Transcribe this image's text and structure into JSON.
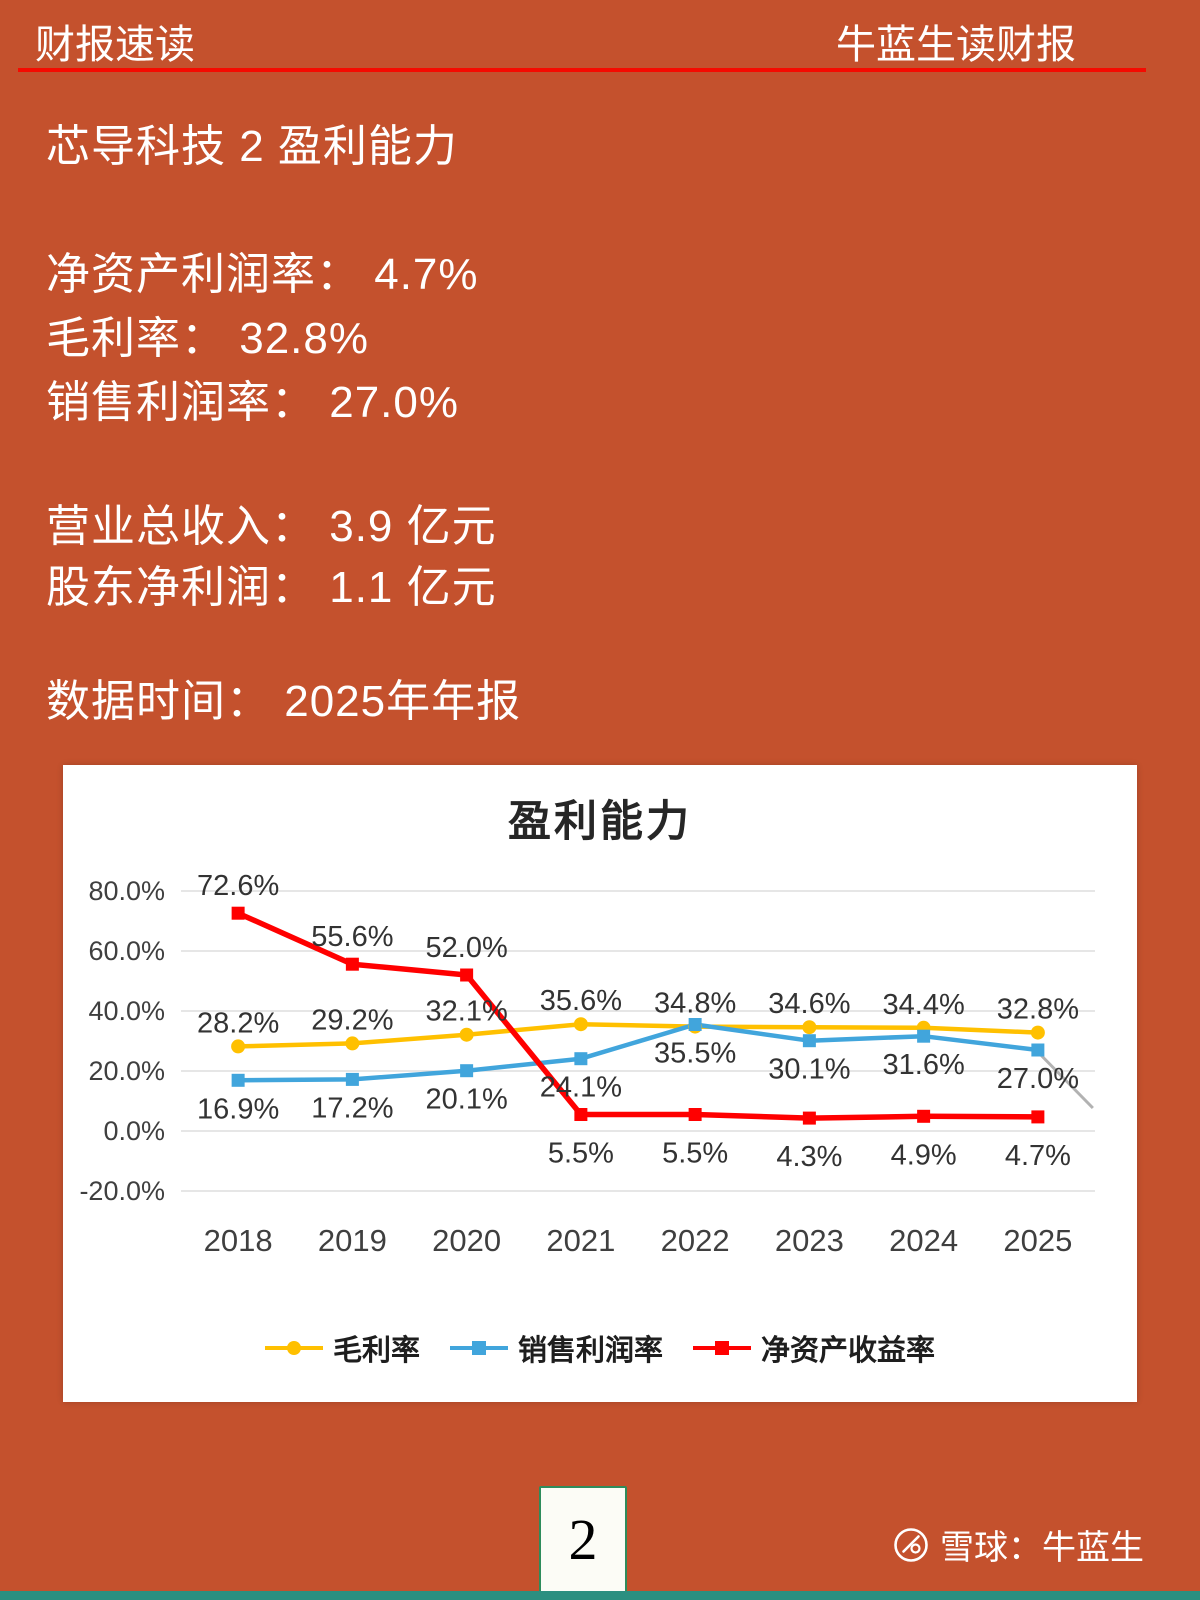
{
  "colors": {
    "background": "#C4512D",
    "header_rule": "#F50A00",
    "footer_strip": "#2B8F80",
    "page_box_border": "#2E8C5C",
    "series_gross_margin": "#FFC000",
    "series_net_sales_margin": "#41A5DC",
    "series_roe": "#FF0000"
  },
  "header": {
    "left_title": "财报速读",
    "right_title": "牛蓝生读财报"
  },
  "title": "芯导科技 2 盈利能力",
  "stats": [
    "净资产利润率： 4.7%",
    "毛利率： 32.8%",
    "销售利润率： 27.0%"
  ],
  "revenue": [
    "营业总收入： 3.9 亿元",
    "股东净利润： 1.1 亿元"
  ],
  "data_time": "数据时间： 2025年年报",
  "footer": {
    "page_number": "2",
    "watermark": "雪球：牛蓝生"
  },
  "chart_data": {
    "type": "line",
    "title": "盈利能力",
    "categories": [
      "2018",
      "2019",
      "2020",
      "2021",
      "2022",
      "2023",
      "2024",
      "2025"
    ],
    "series": [
      {
        "name": "毛利率",
        "color": "#FFC000",
        "marker": "circle",
        "values": [
          28.2,
          29.2,
          32.1,
          35.6,
          34.8,
          34.6,
          34.4,
          32.8
        ]
      },
      {
        "name": "销售利润率",
        "color": "#41A5DC",
        "marker": "square",
        "values": [
          16.9,
          17.2,
          20.1,
          24.1,
          35.5,
          30.1,
          31.6,
          27.0
        ]
      },
      {
        "name": "净资产收益率",
        "color": "#FF0000",
        "marker": "square",
        "values": [
          72.6,
          55.6,
          52.0,
          5.5,
          5.5,
          4.3,
          4.9,
          4.7
        ]
      }
    ],
    "xlabel": "",
    "ylabel": "",
    "ylim": [
      -20,
      80
    ],
    "ytick_step": 20,
    "ytick_format": "percent_1dp",
    "grid": true,
    "legend_position": "bottom",
    "data_labels": true
  }
}
